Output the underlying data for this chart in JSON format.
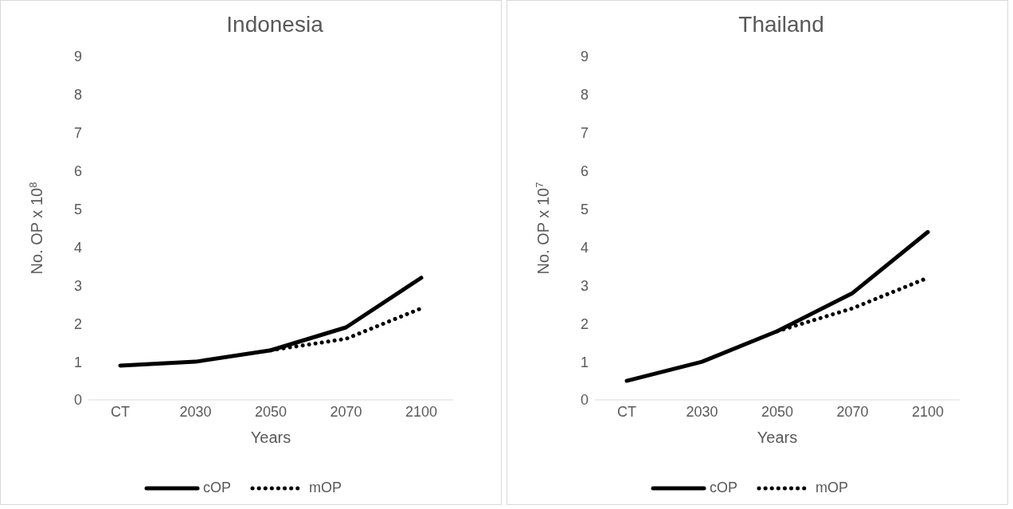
{
  "chart_data": [
    {
      "type": "line",
      "title": "Indonesia",
      "xlabel": "Years",
      "ylabel": "No. OP x 10$^{8}$",
      "categories": [
        "CT",
        "2030",
        "2050",
        "2070",
        "2100"
      ],
      "ylim": [
        0,
        9
      ],
      "yticks": [
        0,
        1,
        2,
        3,
        4,
        5,
        6,
        7,
        8,
        9
      ],
      "grid": false,
      "legend": "bottom",
      "series": [
        {
          "name": "cOP",
          "color": "#000000",
          "line_style": "solid",
          "values": [
            0.9,
            1.0,
            1.3,
            1.9,
            3.2
          ]
        },
        {
          "name": "mOP",
          "color": "#000000",
          "line_style": "dotted",
          "values": [
            null,
            null,
            1.3,
            1.6,
            2.4
          ]
        }
      ]
    },
    {
      "type": "line",
      "title": "Thailand",
      "xlabel": "Years",
      "ylabel": "No. OP x 10$^{7}$",
      "categories": [
        "CT",
        "2030",
        "2050",
        "2070",
        "2100"
      ],
      "ylim": [
        0,
        9
      ],
      "yticks": [
        0,
        1,
        2,
        3,
        4,
        5,
        6,
        7,
        8,
        9
      ],
      "grid": false,
      "legend": "bottom",
      "series": [
        {
          "name": "cOP",
          "color": "#000000",
          "line_style": "solid",
          "values": [
            0.5,
            1.0,
            1.8,
            2.8,
            4.4
          ]
        },
        {
          "name": "mOP",
          "color": "#000000",
          "line_style": "dotted",
          "values": [
            null,
            null,
            1.8,
            2.4,
            3.2
          ]
        }
      ]
    }
  ]
}
